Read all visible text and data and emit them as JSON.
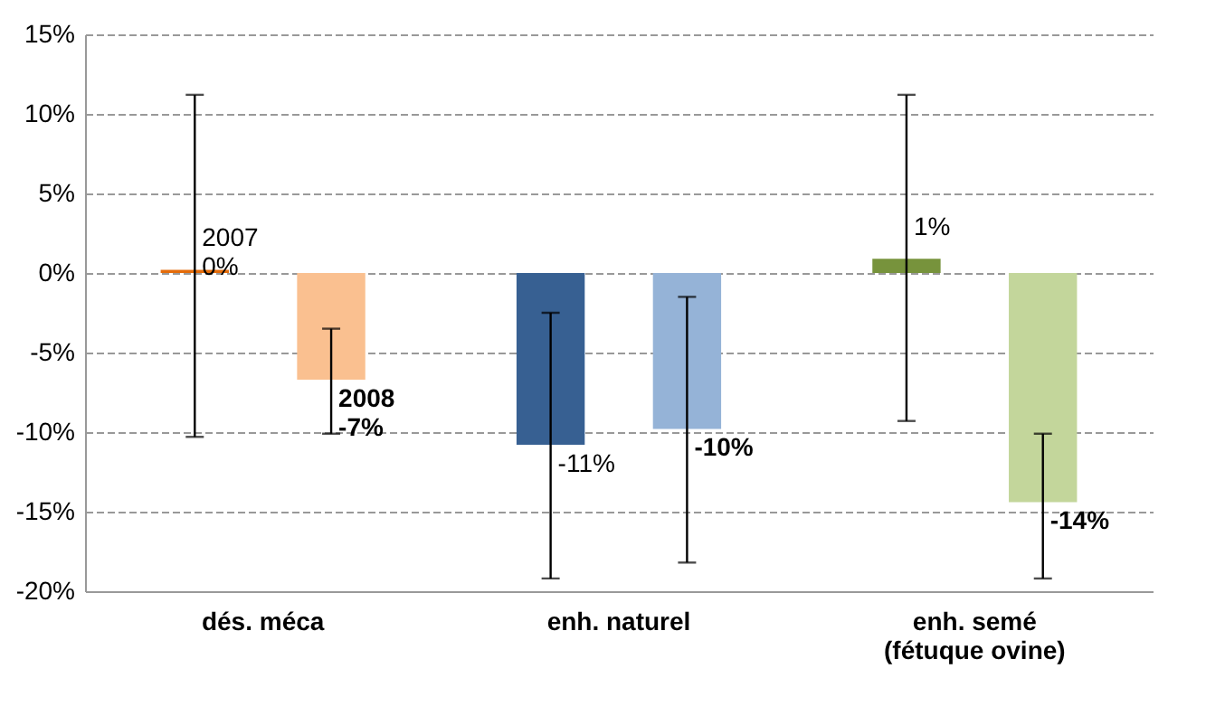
{
  "chart_data": {
    "type": "bar",
    "categories": [
      "dés. méca",
      "enh. naturel",
      "enh. semé (fétuque ovine)"
    ],
    "series": [
      {
        "name": "2007",
        "colors": [
          "#e46c0a",
          "#376092",
          "#77933c"
        ],
        "values": [
          0.2,
          -10.8,
          0.9
        ],
        "value_labels": [
          "0%",
          "-11%",
          "1%"
        ],
        "errors": [
          [
            -10.3,
            11.2
          ],
          [
            -19.2,
            -2.5
          ],
          [
            -9.3,
            11.2
          ]
        ]
      },
      {
        "name": "2008",
        "colors": [
          "#fac090",
          "#95b3d7",
          "#c3d69b"
        ],
        "values": [
          -6.7,
          -9.8,
          -14.4
        ],
        "value_labels": [
          "-7%",
          "-10%",
          "-14%"
        ],
        "errors": [
          [
            -10.1,
            -3.5
          ],
          [
            -18.2,
            -1.5
          ],
          [
            -19.2,
            -10.1
          ]
        ]
      }
    ],
    "ylim": [
      -20,
      15
    ],
    "yticks": [
      {
        "value": -20,
        "label": "-20%"
      },
      {
        "value": -15,
        "label": "-15%"
      },
      {
        "value": -10,
        "label": "-10%"
      },
      {
        "value": -5,
        "label": "-5%"
      },
      {
        "value": 0,
        "label": "0%"
      },
      {
        "value": 5,
        "label": "5%"
      },
      {
        "value": 10,
        "label": "10%"
      },
      {
        "value": 15,
        "label": "15%"
      }
    ],
    "grid": "y"
  }
}
